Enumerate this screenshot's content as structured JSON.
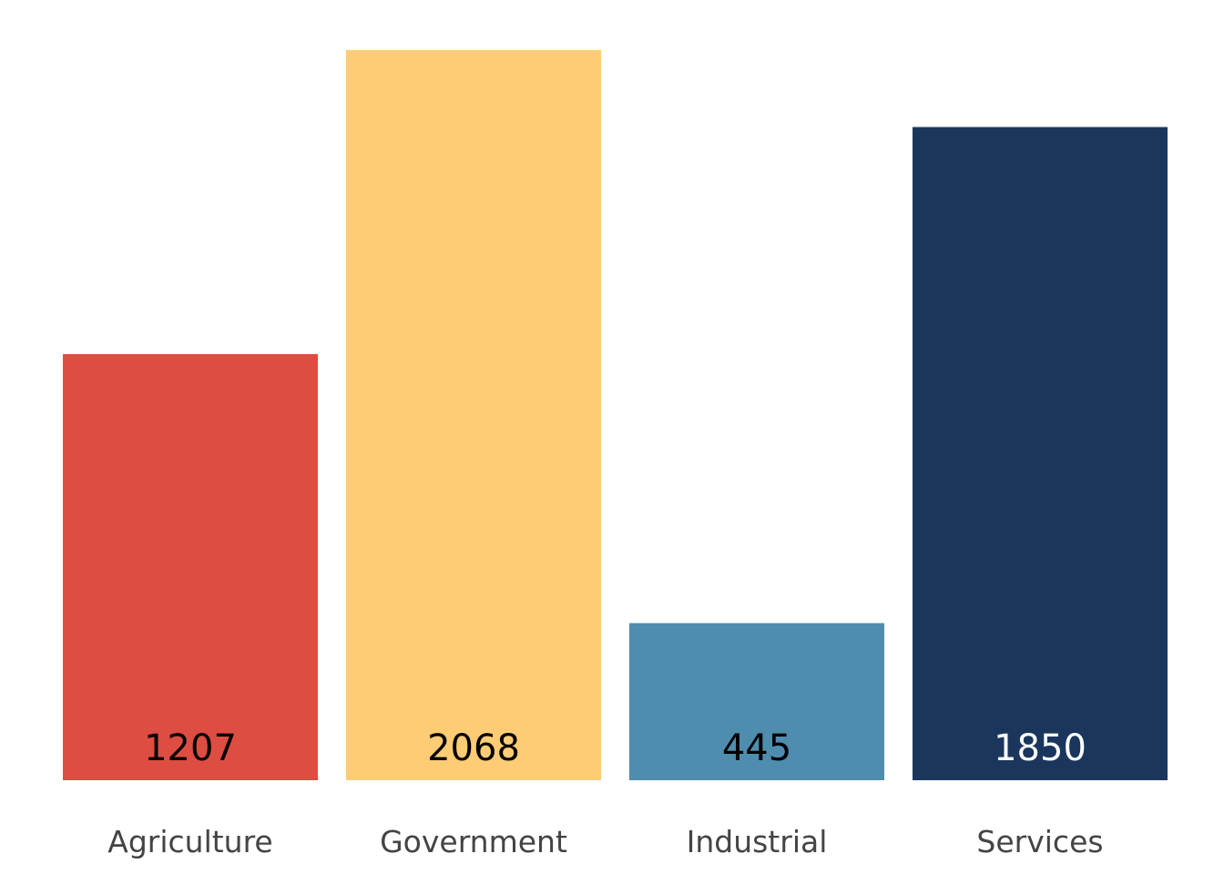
{
  "chart_data": {
    "type": "bar",
    "categories": [
      "Agriculture",
      "Government",
      "Industrial",
      "Services"
    ],
    "values": [
      1207,
      2068,
      445,
      1850
    ],
    "title": "",
    "xlabel": "",
    "ylabel": "",
    "ylim": [
      0,
      2068
    ],
    "grid": false,
    "legend": "none",
    "data_labels": [
      "1207",
      "2068",
      "445",
      "1850"
    ],
    "colors": [
      "#DE4D42",
      "#FDCC74",
      "#4E8DAE",
      "#1A365C"
    ],
    "label_colors": [
      "#000000",
      "#000000",
      "#000000",
      "#ffffff"
    ]
  }
}
